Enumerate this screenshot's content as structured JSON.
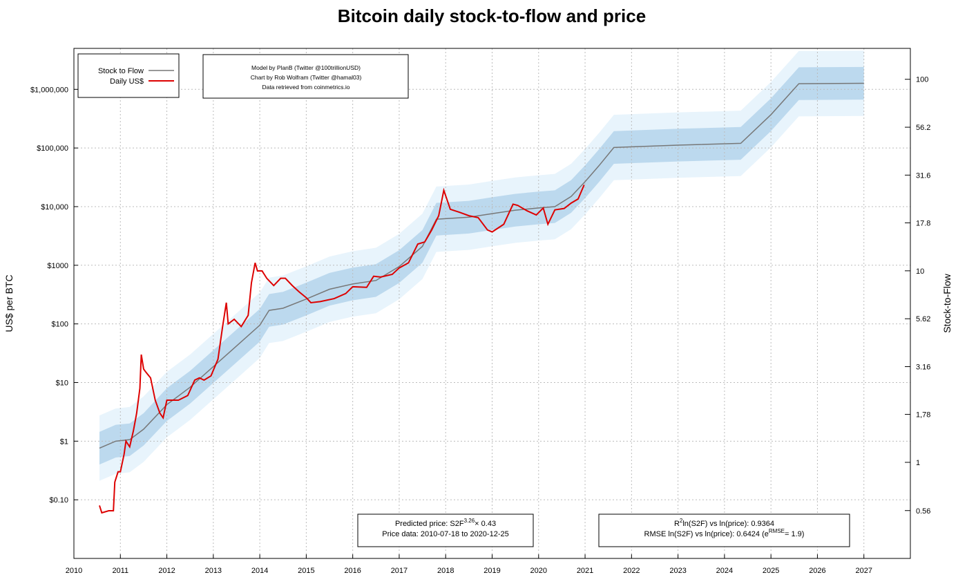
{
  "chart_data": {
    "type": "line",
    "title": "Bitcoin daily stock-to-flow and price",
    "ylabel": "US$ per BTC",
    "y2label": "Stock-to-Flow",
    "log_y": true,
    "log_y2": true,
    "grid": true,
    "legend": "upper left",
    "xlim": [
      2010,
      2028
    ],
    "xticks": [
      2010,
      2011,
      2012,
      2013,
      2014,
      2015,
      2016,
      2017,
      2018,
      2019,
      2020,
      2021,
      2022,
      2023,
      2024,
      2025,
      2026,
      2027
    ],
    "ylim": [
      0.01,
      5000000
    ],
    "yticks": [
      {
        "value": 0.1,
        "label": "$0.10"
      },
      {
        "value": 1,
        "label": "$1"
      },
      {
        "value": 10,
        "label": "$10"
      },
      {
        "value": 100,
        "label": "$100"
      },
      {
        "value": 1000,
        "label": "$1000"
      },
      {
        "value": 10000,
        "label": "$10,000"
      },
      {
        "value": 100000,
        "label": "$100,000"
      },
      {
        "value": 1000000,
        "label": "$1,000,000"
      }
    ],
    "y2lim": [
      0.315,
      145
    ],
    "y2ticks": [
      0.56,
      1,
      {
        "value": 1.78,
        "label": "1,78"
      },
      3.16,
      5.62,
      10,
      17.8,
      31.6,
      56.2,
      100
    ],
    "series": [
      {
        "name": "Stock to Flow",
        "color": "#777777",
        "x": [
          2010.55,
          2010.9,
          2011.2,
          2011.5,
          2012.0,
          2012.5,
          2013.0,
          2013.5,
          2014.0,
          2014.2,
          2014.5,
          2015.0,
          2015.5,
          2016.0,
          2016.5,
          2017.0,
          2017.5,
          2017.8,
          2018.5,
          2019.0,
          2019.5,
          2020.0,
          2020.35,
          2020.7,
          2021.0,
          2021.3,
          2021.62,
          2023.0,
          2024.35,
          2025.0,
          2025.6,
          2027.0
        ],
        "values": [
          0.76,
          1.0,
          1.06,
          1.6,
          4.2,
          8.3,
          18.7,
          42,
          95,
          170,
          185,
          265,
          390,
          480,
          550,
          950,
          2100,
          6100,
          6600,
          7600,
          8700,
          9500,
          10000,
          14900,
          26600,
          50000,
          102000,
          112000,
          120000,
          370000,
          1250000,
          1270000
        ]
      },
      {
        "name": "Daily US$",
        "color": "#dd0000",
        "x": [
          2010.55,
          2010.6,
          2010.75,
          2010.85,
          2010.88,
          2010.95,
          2011.0,
          2011.08,
          2011.12,
          2011.2,
          2011.28,
          2011.35,
          2011.42,
          2011.45,
          2011.5,
          2011.55,
          2011.65,
          2011.75,
          2011.85,
          2011.92,
          2012.0,
          2012.1,
          2012.25,
          2012.45,
          2012.6,
          2012.7,
          2012.8,
          2012.95,
          2013.1,
          2013.2,
          2013.28,
          2013.32,
          2013.45,
          2013.6,
          2013.75,
          2013.82,
          2013.9,
          2013.95,
          2014.05,
          2014.15,
          2014.3,
          2014.45,
          2014.55,
          2014.7,
          2014.85,
          2015.0,
          2015.1,
          2015.3,
          2015.6,
          2015.85,
          2016.0,
          2016.3,
          2016.45,
          2016.6,
          2016.85,
          2017.0,
          2017.2,
          2017.4,
          2017.55,
          2017.7,
          2017.85,
          2017.96,
          2018.1,
          2018.3,
          2018.5,
          2018.7,
          2018.9,
          2019.0,
          2019.25,
          2019.45,
          2019.55,
          2019.75,
          2019.95,
          2020.1,
          2020.2,
          2020.35,
          2020.55,
          2020.7,
          2020.85,
          2020.98
        ],
        "values": [
          0.08,
          0.06,
          0.065,
          0.065,
          0.2,
          0.3,
          0.3,
          0.6,
          1.0,
          0.8,
          1.5,
          3.0,
          8,
          30,
          17,
          15,
          12,
          5,
          3,
          2.5,
          5,
          5,
          5,
          6,
          11,
          12,
          11,
          13,
          25,
          90,
          230,
          100,
          120,
          90,
          140,
          500,
          1100,
          800,
          800,
          600,
          450,
          600,
          600,
          450,
          350,
          280,
          230,
          240,
          270,
          330,
          430,
          420,
          650,
          630,
          700,
          900,
          1100,
          2300,
          2500,
          4000,
          7000,
          19000,
          9000,
          8000,
          7000,
          6500,
          4000,
          3700,
          5000,
          11000,
          10500,
          8500,
          7200,
          9500,
          5000,
          8800,
          9300,
          11500,
          13500,
          23500
        ]
      }
    ],
    "bands": [
      {
        "color": "#e8f4fc",
        "upper": [
          2.74,
          3.61,
          3.83,
          5.78,
          15.2,
          30,
          67.5,
          152,
          343,
          614,
          668,
          957,
          1408,
          1733,
          1986,
          3430,
          7581,
          22021,
          23826,
          27436,
          31407,
          34295,
          36100,
          53789,
          96026,
          180500,
          368220,
          404320,
          433200,
          1335700,
          4512500,
          4584700
        ],
        "lower": [
          0.211,
          0.277,
          0.294,
          0.443,
          1.163,
          2.3,
          5.18,
          11.6,
          26.3,
          47.1,
          51.2,
          73.4,
          108,
          133,
          152,
          263,
          582,
          1690,
          1828,
          2105,
          2410,
          2632,
          2770,
          4127,
          7368,
          13850,
          28255,
          31025,
          33240,
          102493,
          346260,
          351800
        ]
      },
      {
        "color": "#bcd9ee",
        "upper": [
          1.44,
          1.9,
          2.0,
          3.0,
          8.0,
          15.8,
          35.5,
          80,
          180,
          323,
          352,
          504,
          741,
          912,
          1045,
          1805,
          3990,
          11590,
          12540,
          14440,
          16530,
          18050,
          19000,
          28310,
          50540,
          95000,
          193800,
          212800,
          228000,
          703000,
          2375000,
          2413000
        ],
        "lower": [
          0.4,
          0.526,
          0.558,
          0.842,
          2.21,
          4.37,
          9.84,
          22.1,
          50,
          89.5,
          97.4,
          139.5,
          205,
          253,
          289,
          500,
          1105,
          3211,
          3474,
          4000,
          4579,
          5000,
          5263,
          7842,
          14000,
          26316,
          53684,
          58947,
          63158,
          194737,
          657895,
          668421
        ]
      }
    ],
    "credits": [
      "Model by PlanB (Twitter @100trillionUSD)",
      "Chart by Rob Wolfram (Twitter @hamal03)",
      "Data retrieved from coinmetrics.io"
    ],
    "annotations": [
      [
        [
          {
            "text": "Predicted price: S2F"
          },
          {
            "text": "3.26",
            "sup": true
          },
          {
            "text": "× 0.43"
          }
        ],
        [
          {
            "text": "Price data: 2010-07-18 to 2020-12-25"
          }
        ]
      ],
      [
        [
          {
            "text": "R"
          },
          {
            "text": "2",
            "sup": true
          },
          {
            "text": "ln(S2F) vs ln(price): 0.9364"
          }
        ],
        [
          {
            "text": "RMSE ln(S2F) vs ln(price): 0.6424 (e"
          },
          {
            "text": "RMSE",
            "sup": true
          },
          {
            "text": "= 1.9)"
          }
        ]
      ]
    ]
  }
}
